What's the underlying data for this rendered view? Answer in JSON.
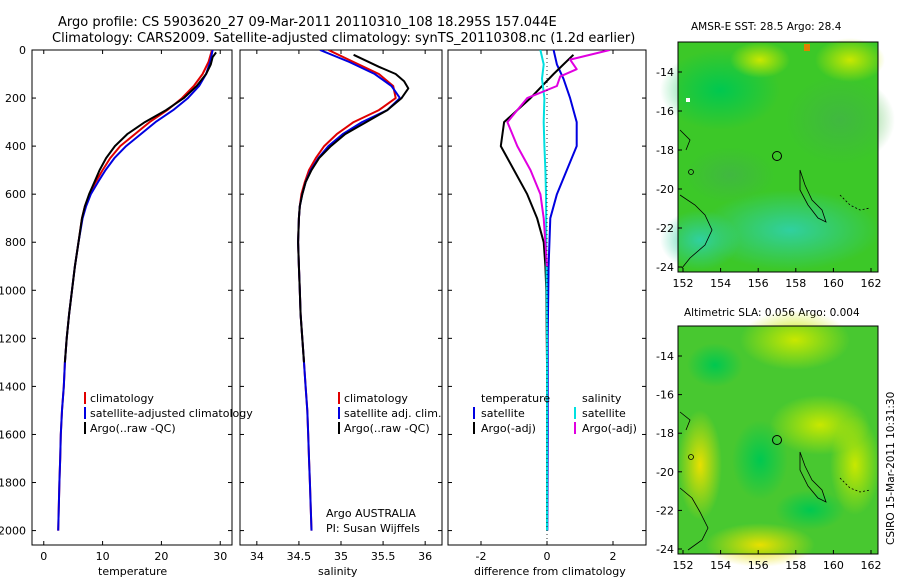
{
  "title": {
    "line1": "Argo profile: CS 5903620_27 09-Mar-2011 20110310_108 18.295S 157.044E",
    "line2": "Climatology: CARS2009. Satellite-adjusted climatology: synTS_20110308.nc (1.2d earlier)"
  },
  "colors": {
    "clim": "#e00000",
    "sat": "#0000e0",
    "argo": "#000000",
    "sat_cyan": "#00e0e0",
    "argo_mag": "#e000e0"
  },
  "chart_data": [
    {
      "id": "temperature",
      "type": "line",
      "xlabel": "temperature",
      "ylabel": "",
      "xlim": [
        -2,
        32
      ],
      "ylim": [
        2060,
        0
      ],
      "xticks": [
        0,
        10,
        20,
        30
      ],
      "yticks": [
        0,
        200,
        400,
        600,
        800,
        1000,
        1200,
        1400,
        1600,
        1800,
        2000
      ],
      "series": [
        {
          "name": "climatology",
          "color": "#e00000",
          "points": [
            [
              28.6,
              0
            ],
            [
              28,
              50
            ],
            [
              27,
              100
            ],
            [
              25.5,
              150
            ],
            [
              23.5,
              200
            ],
            [
              21,
              250
            ],
            [
              18,
              300
            ],
            [
              15.5,
              350
            ],
            [
              13,
              400
            ],
            [
              11.3,
              450
            ],
            [
              10,
              500
            ],
            [
              8.8,
              550
            ],
            [
              7.8,
              600
            ],
            [
              7,
              650
            ],
            [
              6.5,
              700
            ],
            [
              5.9,
              800
            ],
            [
              5.3,
              900
            ],
            [
              4.8,
              1000
            ],
            [
              4.3,
              1100
            ],
            [
              3.9,
              1200
            ],
            [
              3.6,
              1300
            ],
            [
              3.4,
              1400
            ],
            [
              3.1,
              1500
            ],
            [
              2.9,
              1600
            ],
            [
              2.8,
              1700
            ],
            [
              2.65,
              1800
            ],
            [
              2.55,
              1900
            ],
            [
              2.45,
              2000
            ]
          ]
        },
        {
          "name": "satellite-adjusted climatology",
          "color": "#0000e0",
          "points": [
            [
              28.7,
              0
            ],
            [
              28.3,
              50
            ],
            [
              27.6,
              100
            ],
            [
              26.4,
              150
            ],
            [
              24.5,
              200
            ],
            [
              22,
              250
            ],
            [
              19,
              300
            ],
            [
              16.5,
              350
            ],
            [
              14,
              400
            ],
            [
              12,
              450
            ],
            [
              10.5,
              500
            ],
            [
              9.2,
              550
            ],
            [
              8,
              600
            ],
            [
              7.2,
              650
            ],
            [
              6.6,
              700
            ],
            [
              5.9,
              800
            ],
            [
              5.3,
              900
            ],
            [
              4.8,
              1000
            ],
            [
              4.3,
              1100
            ],
            [
              3.9,
              1200
            ],
            [
              3.6,
              1300
            ],
            [
              3.4,
              1400
            ],
            [
              3.1,
              1500
            ],
            [
              2.9,
              1600
            ],
            [
              2.8,
              1700
            ],
            [
              2.65,
              1800
            ],
            [
              2.55,
              1900
            ],
            [
              2.45,
              2000
            ]
          ]
        },
        {
          "name": "Argo(..raw -QC)",
          "color": "#000000",
          "points": [
            [
              29.3,
              10
            ],
            [
              28.7,
              30
            ],
            [
              28.4,
              60
            ],
            [
              27.6,
              100
            ],
            [
              26,
              150
            ],
            [
              23.8,
              200
            ],
            [
              20.8,
              250
            ],
            [
              17.2,
              300
            ],
            [
              14.2,
              350
            ],
            [
              12.1,
              400
            ],
            [
              10.6,
              450
            ],
            [
              9.5,
              500
            ],
            [
              8.6,
              550
            ],
            [
              7.7,
              600
            ],
            [
              7,
              650
            ],
            [
              6.5,
              700
            ],
            [
              5.9,
              800
            ],
            [
              5.3,
              900
            ],
            [
              4.8,
              1000
            ],
            [
              4.3,
              1100
            ],
            [
              3.9,
              1200
            ],
            [
              3.6,
              1300
            ]
          ]
        }
      ],
      "legend": [
        "climatology",
        "satellite-adjusted climatology",
        "Argo(..raw -QC)"
      ]
    },
    {
      "id": "salinity",
      "type": "line",
      "xlabel": "salinity",
      "ylabel": "",
      "xlim": [
        33.8,
        36.2
      ],
      "ylim": [
        2060,
        0
      ],
      "xticks": [
        34,
        34.5,
        35,
        35.5,
        36
      ],
      "xticklabels": [
        "34",
        "34.5",
        "35",
        "35.5",
        "36"
      ],
      "series": [
        {
          "name": "climatology",
          "color": "#e00000",
          "points": [
            [
              34.85,
              0
            ],
            [
              35.15,
              50
            ],
            [
              35.45,
              100
            ],
            [
              35.62,
              150
            ],
            [
              35.65,
              200
            ],
            [
              35.45,
              250
            ],
            [
              35.15,
              300
            ],
            [
              34.95,
              350
            ],
            [
              34.8,
              400
            ],
            [
              34.7,
              450
            ],
            [
              34.62,
              500
            ],
            [
              34.57,
              550
            ],
            [
              34.53,
              600
            ],
            [
              34.51,
              650
            ],
            [
              34.5,
              700
            ],
            [
              34.49,
              800
            ],
            [
              34.5,
              900
            ],
            [
              34.51,
              1000
            ],
            [
              34.52,
              1100
            ],
            [
              34.54,
              1200
            ],
            [
              34.56,
              1300
            ],
            [
              34.58,
              1400
            ],
            [
              34.6,
              1500
            ],
            [
              34.61,
              1600
            ],
            [
              34.62,
              1700
            ],
            [
              34.63,
              1800
            ],
            [
              34.64,
              1900
            ],
            [
              34.65,
              2000
            ]
          ]
        },
        {
          "name": "satellite adj. clim.",
          "color": "#0000e0",
          "points": [
            [
              34.75,
              0
            ],
            [
              35.1,
              50
            ],
            [
              35.4,
              100
            ],
            [
              35.6,
              150
            ],
            [
              35.7,
              200
            ],
            [
              35.55,
              250
            ],
            [
              35.25,
              300
            ],
            [
              35.02,
              350
            ],
            [
              34.85,
              400
            ],
            [
              34.73,
              450
            ],
            [
              34.64,
              500
            ],
            [
              34.58,
              550
            ],
            [
              34.54,
              600
            ],
            [
              34.51,
              650
            ],
            [
              34.5,
              700
            ],
            [
              34.49,
              800
            ],
            [
              34.5,
              900
            ],
            [
              34.51,
              1000
            ],
            [
              34.52,
              1100
            ],
            [
              34.54,
              1200
            ],
            [
              34.56,
              1300
            ],
            [
              34.58,
              1400
            ],
            [
              34.6,
              1500
            ],
            [
              34.61,
              1600
            ],
            [
              34.62,
              1700
            ],
            [
              34.63,
              1800
            ],
            [
              34.64,
              1900
            ],
            [
              34.65,
              2000
            ]
          ]
        },
        {
          "name": "Argo(..raw -QC)",
          "color": "#000000",
          "points": [
            [
              35.15,
              20
            ],
            [
              35.45,
              70
            ],
            [
              35.65,
              100
            ],
            [
              35.75,
              130
            ],
            [
              35.8,
              160
            ],
            [
              35.72,
              200
            ],
            [
              35.55,
              250
            ],
            [
              35.3,
              300
            ],
            [
              35.05,
              350
            ],
            [
              34.88,
              400
            ],
            [
              34.74,
              450
            ],
            [
              34.65,
              500
            ],
            [
              34.58,
              550
            ],
            [
              34.54,
              600
            ],
            [
              34.51,
              650
            ],
            [
              34.5,
              700
            ],
            [
              34.49,
              800
            ],
            [
              34.5,
              900
            ],
            [
              34.51,
              1000
            ],
            [
              34.52,
              1100
            ],
            [
              34.54,
              1200
            ],
            [
              34.56,
              1300
            ]
          ]
        }
      ],
      "legend": [
        "climatology",
        "satellite adj. clim.",
        "Argo(..raw -QC)"
      ],
      "annotation": [
        "Argo AUSTRALIA",
        "PI: Susan Wijffels"
      ]
    },
    {
      "id": "difference",
      "type": "line",
      "xlabel": "difference from climatology",
      "ylabel": "",
      "xlim": [
        -3,
        3
      ],
      "ylim": [
        2060,
        0
      ],
      "xticks": [
        -2,
        0,
        2
      ],
      "series": [
        {
          "name": "temperature satellite",
          "color": "#0000e0",
          "points": [
            [
              0.2,
              0
            ],
            [
              0.3,
              60
            ],
            [
              0.5,
              120
            ],
            [
              0.7,
              200
            ],
            [
              0.9,
              300
            ],
            [
              0.9,
              400
            ],
            [
              0.6,
              500
            ],
            [
              0.3,
              600
            ],
            [
              0.1,
              700
            ],
            [
              0.05,
              900
            ],
            [
              0.02,
              1200
            ],
            [
              0.02,
              1600
            ],
            [
              0.01,
              2000
            ]
          ]
        },
        {
          "name": "temperature Argo(-adj)",
          "color": "#000000",
          "points": [
            [
              0.8,
              20
            ],
            [
              0.5,
              60
            ],
            [
              0.2,
              100
            ],
            [
              -0.5,
              200
            ],
            [
              -1.3,
              300
            ],
            [
              -1.4,
              400
            ],
            [
              -1,
              500
            ],
            [
              -0.6,
              600
            ],
            [
              -0.3,
              700
            ],
            [
              -0.1,
              800
            ],
            [
              -0.05,
              900
            ],
            [
              -0.02,
              1000
            ],
            [
              0,
              1300
            ]
          ]
        },
        {
          "name": "salinity satellite",
          "color": "#00e0e0",
          "points": [
            [
              -0.2,
              0
            ],
            [
              -0.1,
              60
            ],
            [
              -0.15,
              120
            ],
            [
              -0.08,
              200
            ],
            [
              -0.1,
              300
            ],
            [
              -0.08,
              400
            ],
            [
              -0.05,
              500
            ],
            [
              -0.03,
              600
            ],
            [
              -0.02,
              800
            ],
            [
              0,
              1200
            ],
            [
              0,
              1600
            ],
            [
              0,
              2000
            ]
          ]
        },
        {
          "name": "salinity Argo(-adj)",
          "color": "#e000e0",
          "points": [
            [
              1.9,
              0
            ],
            [
              0.7,
              40
            ],
            [
              0.9,
              80
            ],
            [
              0.4,
              110
            ],
            [
              0.3,
              150
            ],
            [
              -0.6,
              200
            ],
            [
              -1.2,
              300
            ],
            [
              -0.9,
              400
            ],
            [
              -0.5,
              500
            ],
            [
              -0.2,
              600
            ],
            [
              -0.1,
              700
            ],
            [
              0,
              900
            ]
          ]
        }
      ],
      "legend": {
        "temperature_header": "temperature",
        "salinity_header": "salinity",
        "items": [
          "satellite",
          "Argo(-adj)",
          "satellite",
          "Argo(-adj)"
        ]
      }
    }
  ],
  "maps": [
    {
      "title": "AMSR-E SST: 28.5 Argo: 28.4",
      "xticks": [
        "152",
        "154",
        "156",
        "158",
        "160",
        "162"
      ],
      "yticks": [
        "-14",
        "-16",
        "-18",
        "-20",
        "-22",
        "-24"
      ]
    },
    {
      "title": "Altimetric SLA: 0.056 Argo: 0.004",
      "xticks": [
        "152",
        "154",
        "156",
        "158",
        "160",
        "162"
      ],
      "yticks": [
        "-14",
        "-16",
        "-18",
        "-20",
        "-22",
        "-24"
      ]
    }
  ],
  "footer": "CSIRO 15-Mar-2011 10:31:30"
}
